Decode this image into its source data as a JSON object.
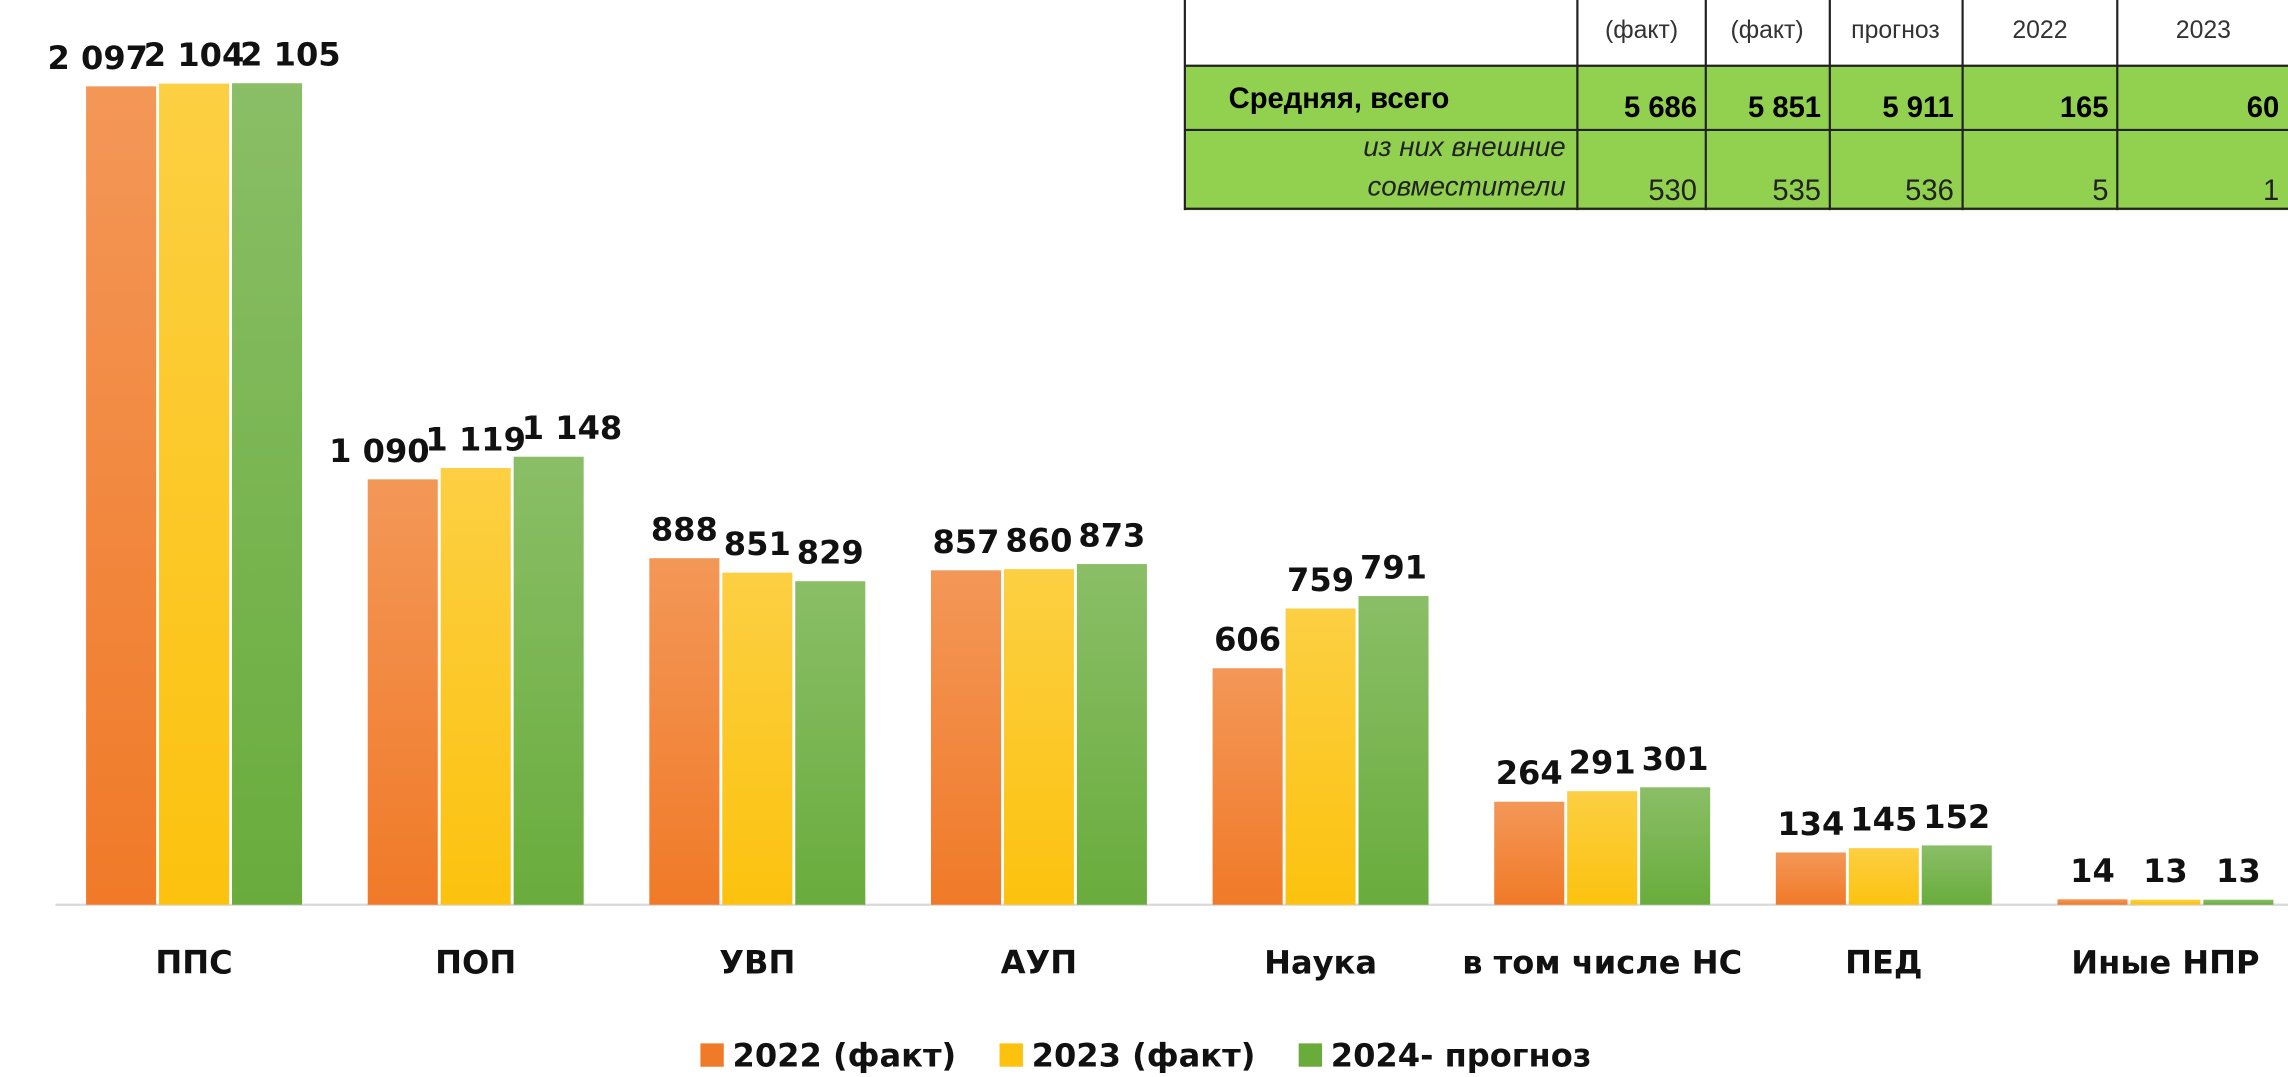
{
  "chart_data": {
    "type": "bar",
    "categories": [
      "ППС",
      "ПОП",
      "УВП",
      "АУП",
      "Наука",
      "в том числе НС",
      "ПЕД",
      "Иные НПР"
    ],
    "series": [
      {
        "name": "2022 (факт)",
        "color": "#f07a28",
        "values": [
          2097,
          1090,
          888,
          857,
          606,
          264,
          134,
          14
        ],
        "value_labels": [
          "2 097",
          "1 090",
          "888",
          "857",
          "606",
          "264",
          "134",
          "14"
        ]
      },
      {
        "name": "2023 (факт)",
        "color": "#fcc20e",
        "values": [
          2104,
          1119,
          851,
          860,
          759,
          291,
          145,
          13
        ],
        "value_labels": [
          "2 104",
          "1 119",
          "851",
          "860",
          "759",
          "291",
          "145",
          "13"
        ]
      },
      {
        "name": "2024- прогноз",
        "color": "#69ac3c",
        "values": [
          2105,
          1148,
          829,
          873,
          791,
          301,
          152,
          13
        ],
        "value_labels": [
          "2 105",
          "1 148",
          "829",
          "873",
          "791",
          "301",
          "152",
          "13"
        ]
      }
    ]
  },
  "table": {
    "header": [
      "(факт)",
      "(факт)",
      "прогноз",
      "2022",
      "2023"
    ],
    "rows": [
      {
        "label": [
          "Средняя, всего"
        ],
        "cells": [
          "5 686",
          "5 851",
          "5 911",
          "165",
          "60"
        ]
      },
      {
        "label": [
          "из них внешние",
          "совместители"
        ],
        "cells": [
          "530",
          "535",
          "536",
          "5",
          "1"
        ]
      }
    ]
  }
}
